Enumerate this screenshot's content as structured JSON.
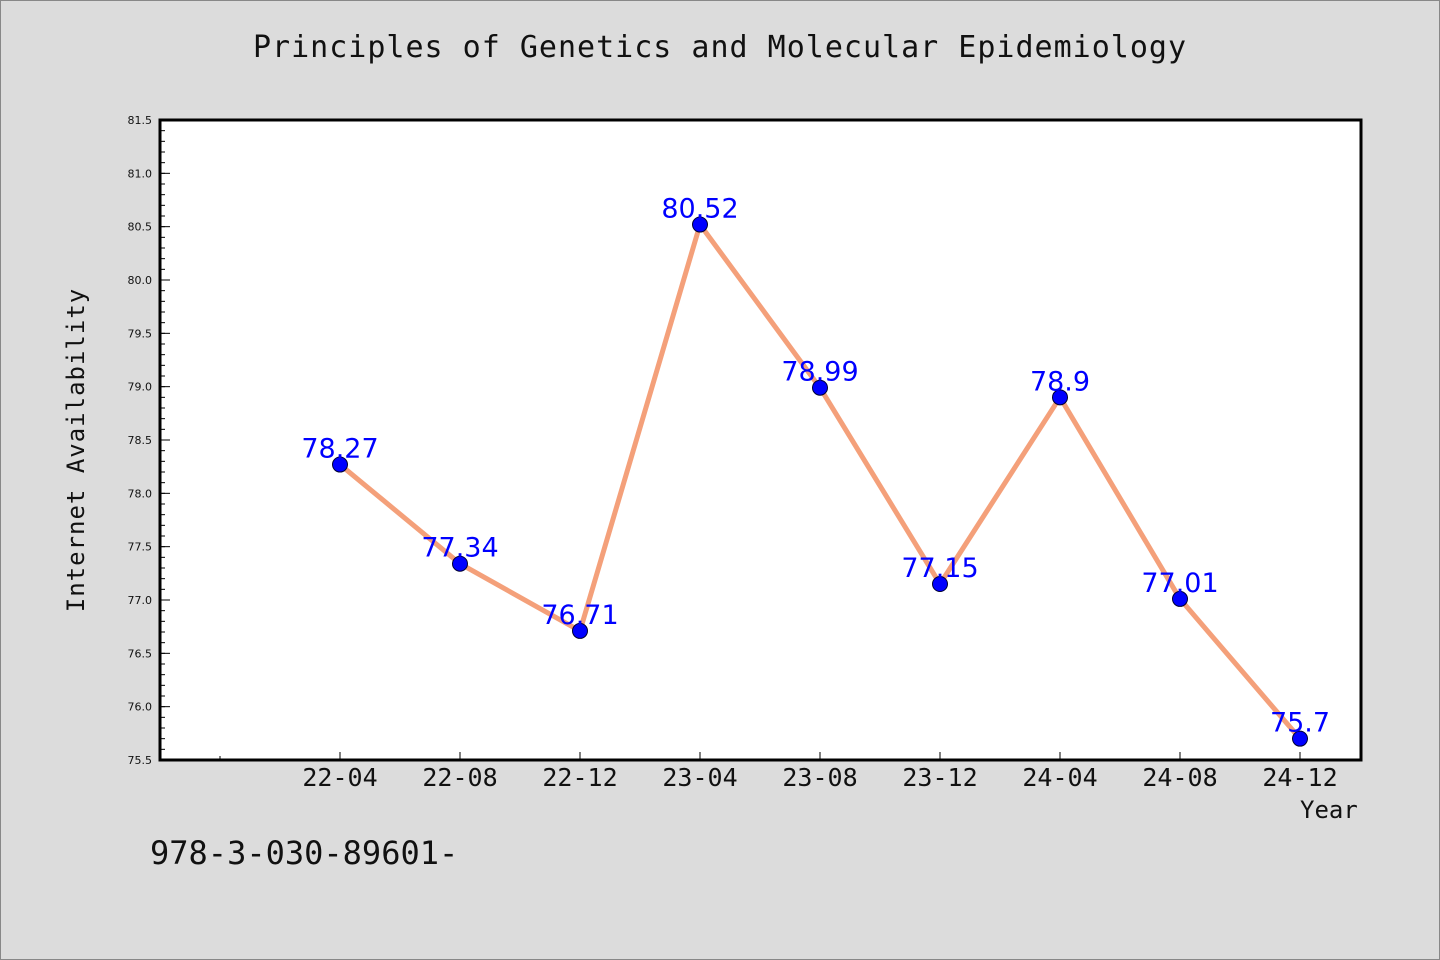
{
  "chart_data": {
    "type": "line",
    "title": "Principles of Genetics and Molecular Epidemiology",
    "xlabel": "Year",
    "ylabel": "Internet Availability",
    "categories": [
      "22-04",
      "22-08",
      "22-12",
      "23-04",
      "23-08",
      "23-12",
      "24-04",
      "24-08",
      "24-12"
    ],
    "series": [
      {
        "values": [
          78.27,
          77.34,
          76.71,
          80.52,
          78.99,
          77.15,
          78.9,
          77.01,
          75.7
        ],
        "labels": [
          "78.27",
          "77.34",
          "76.71",
          "80.52",
          "78.99",
          "77.15",
          "78.9",
          "77.01",
          "75.7"
        ]
      }
    ],
    "ylim": [
      75.5,
      81.5
    ],
    "yticks": [
      "75.5",
      "76.0",
      "76.5",
      "77.0",
      "77.5",
      "78.0",
      "78.5",
      "79.0",
      "79.5",
      "80.0",
      "80.5",
      "81.0",
      "81.5"
    ],
    "grid": false,
    "legend": "none",
    "line_color": "#f4a07a",
    "marker_color": "#0000ff",
    "label_color": "#0000ff",
    "plot_background": "#ffffff",
    "page_background": "#dcdcdc"
  },
  "footer": {
    "text": "978-3-030-89601-"
  }
}
